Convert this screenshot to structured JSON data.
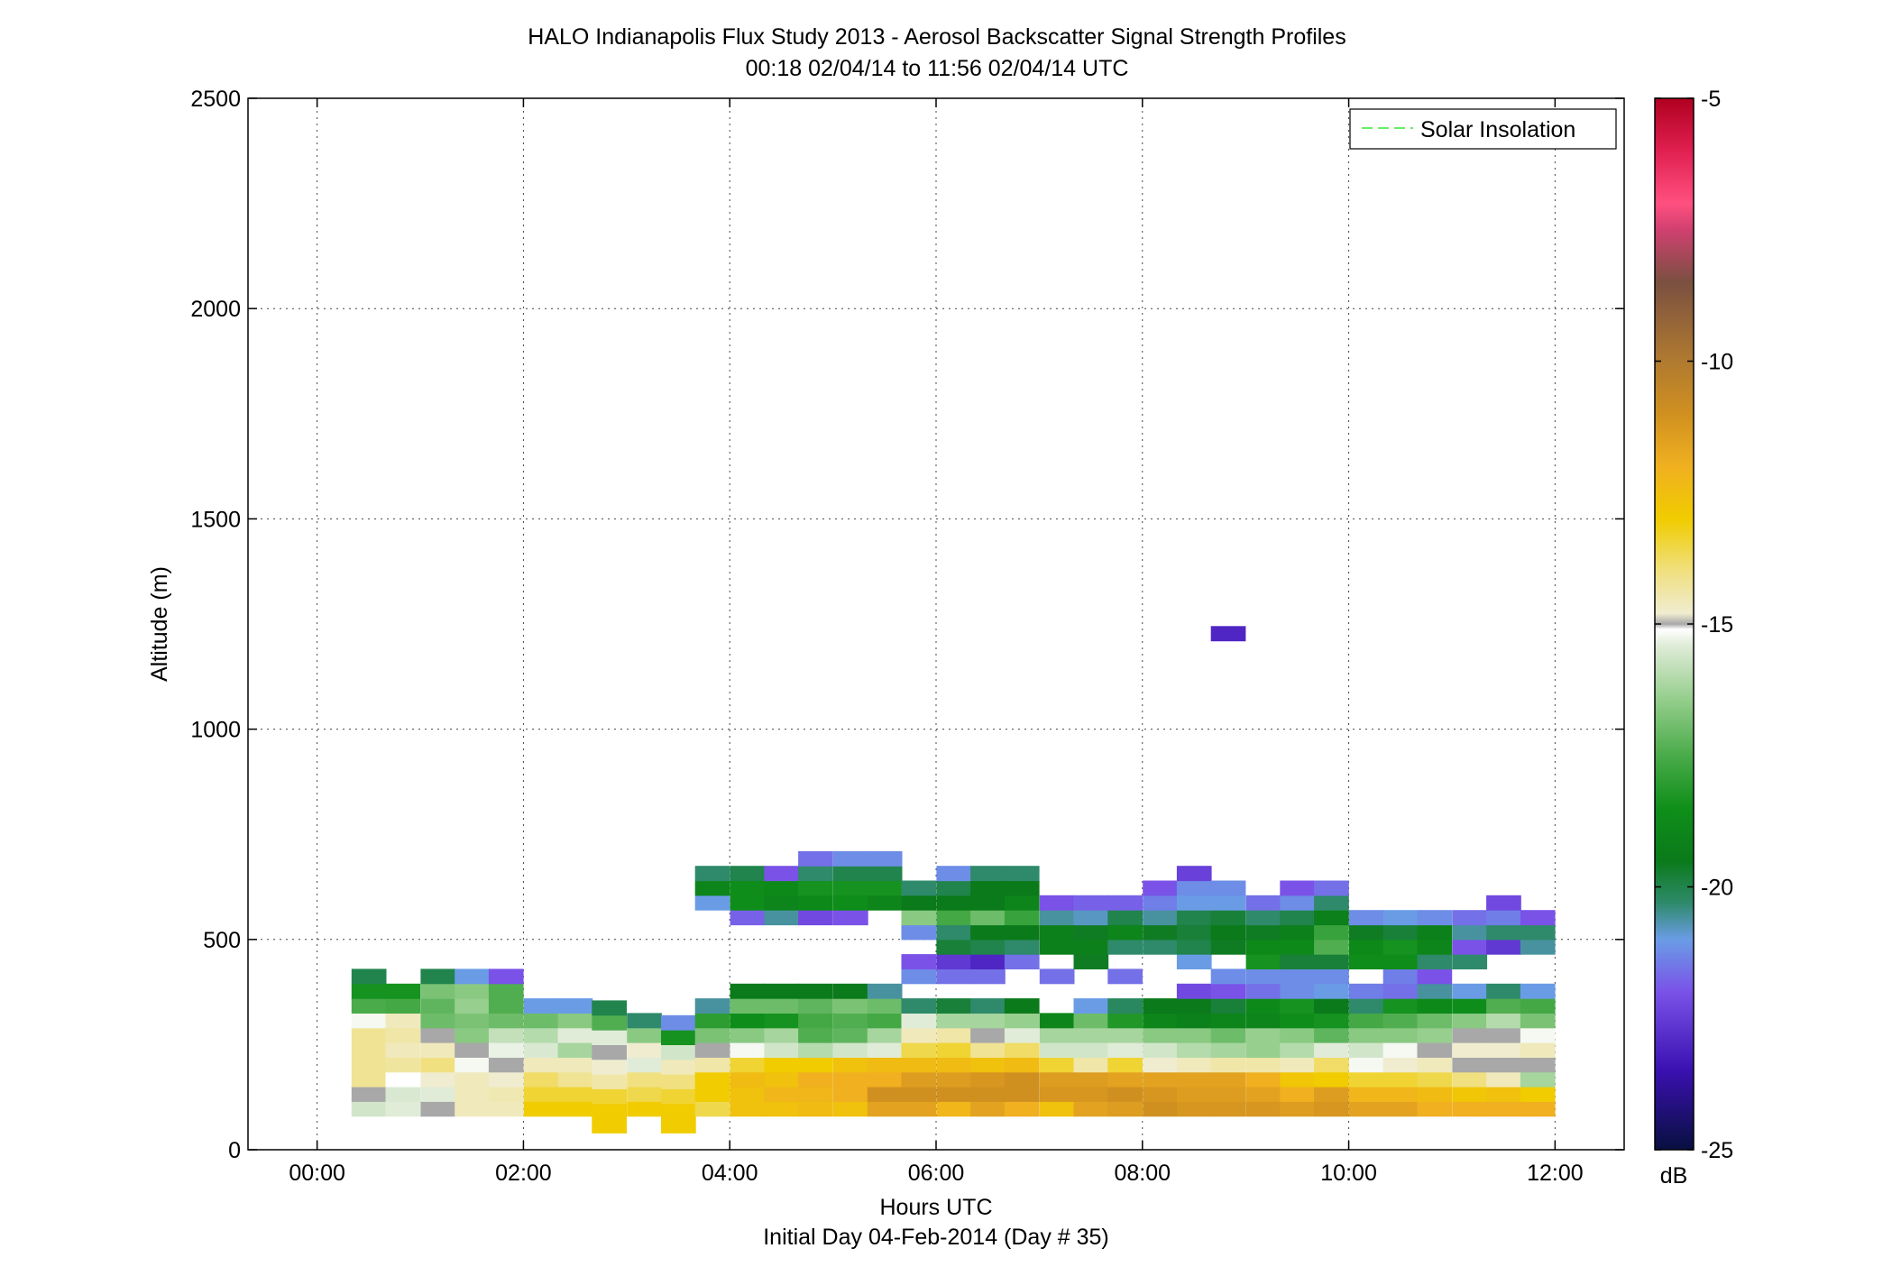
{
  "chart_data": {
    "type": "heatmap",
    "title": "HALO Indianapolis Flux Study 2013 - Aerosol Backscatter Signal Strength Profiles",
    "subtitle": "00:18 02/04/14 to 11:56 02/04/14  UTC",
    "xlabel": "Hours UTC",
    "xlabel2": "Initial Day 04-Feb-2014 (Day # 35)",
    "ylabel": "Altitude (m)",
    "xlim": [
      -0.67,
      12.67
    ],
    "ylim": [
      0,
      2500
    ],
    "x_ticks": [
      "00:00",
      "02:00",
      "04:00",
      "06:00",
      "08:00",
      "10:00",
      "12:00"
    ],
    "x_tick_values": [
      0,
      2,
      4,
      6,
      8,
      10,
      12
    ],
    "y_ticks": [
      0,
      500,
      1000,
      1500,
      2000,
      2500
    ],
    "grid": true,
    "legend": {
      "placement": "top-right",
      "entries": [
        {
          "name": "Solar Insolation",
          "style": "dashed",
          "color": "#66ee66"
        }
      ]
    },
    "colorbar": {
      "label": "dB",
      "range": [
        -25,
        -5
      ],
      "ticks": [
        -5,
        -10,
        -15,
        -20,
        -25
      ],
      "stops": [
        {
          "value": -25,
          "color": "#081040"
        },
        {
          "value": -23.5,
          "color": "#3a10b0"
        },
        {
          "value": -22,
          "color": "#7a52e8"
        },
        {
          "value": -21,
          "color": "#6a9ce6"
        },
        {
          "value": -20.3,
          "color": "#2e8a6a"
        },
        {
          "value": -19.5,
          "color": "#0a7a1a"
        },
        {
          "value": -18.5,
          "color": "#0f8f1a"
        },
        {
          "value": -17.5,
          "color": "#4aab4a"
        },
        {
          "value": -16.5,
          "color": "#90cc88"
        },
        {
          "value": -15.4,
          "color": "#e0ecd8"
        },
        {
          "value": -15.1,
          "color": "#ffffff"
        },
        {
          "value": -15.0,
          "color": "#a8a8a8"
        },
        {
          "value": -14.8,
          "color": "#f0ecd0"
        },
        {
          "value": -14,
          "color": "#f0e080"
        },
        {
          "value": -13,
          "color": "#f0cc00"
        },
        {
          "value": -12,
          "color": "#f0b020"
        },
        {
          "value": -11,
          "color": "#d09020"
        },
        {
          "value": -10,
          "color": "#b07a30"
        },
        {
          "value": -8.5,
          "color": "#7a5040"
        },
        {
          "value": -7.5,
          "color": "#d04070"
        },
        {
          "value": -7,
          "color": "#ff5080"
        },
        {
          "value": -6,
          "color": "#e02050"
        },
        {
          "value": -5,
          "color": "#b00020"
        }
      ]
    },
    "cell": {
      "dt_hours": 0.333,
      "dz_m": 35
    },
    "columns": [
      {
        "t": 0.5,
        "z0": 80,
        "values": [
          -15.6,
          -15.0,
          -14.2,
          -14.2,
          -14.2,
          -14.2,
          -15.2,
          -17.5,
          -18.4,
          -20.0
        ]
      },
      {
        "t": 0.83,
        "z0": 80,
        "values": [
          -15.4,
          -15.5,
          -15.1,
          -14.3,
          -14.6,
          -14.4,
          -14.6,
          -17.6,
          -18.4
        ]
      },
      {
        "t": 1.17,
        "z0": 80,
        "values": [
          -15.0,
          -15.4,
          -14.8,
          -14.0,
          -14.6,
          -15.0,
          -17.0,
          -17.2,
          -16.8,
          -20.0
        ]
      },
      {
        "t": 1.5,
        "z0": 80,
        "values": [
          -14.6,
          -14.6,
          -14.6,
          -15.2,
          -15.0,
          -16.6,
          -16.8,
          -16.4,
          -16.6,
          -21.0
        ]
      },
      {
        "t": 1.83,
        "z0": 80,
        "values": [
          -14.6,
          -14.5,
          -14.8,
          -15.0,
          -15.3,
          -15.8,
          -17.0,
          -17.4,
          -17.4,
          -22.0
        ]
      },
      {
        "t": 2.17,
        "z0": 80,
        "values": [
          -13.0,
          -13.4,
          -13.8,
          -14.6,
          -15.5,
          -16.0,
          -17.0,
          -21.0
        ]
      },
      {
        "t": 2.5,
        "z0": 80,
        "values": [
          -13.0,
          -13.4,
          -14.2,
          -14.6,
          -16.2,
          -15.4,
          -16.6,
          -21.0
        ]
      },
      {
        "t": 2.83,
        "z0": 40,
        "values": [
          -13.0,
          -13.0,
          -13.4,
          -14.4,
          -14.8,
          -15.0,
          -15.4,
          -17.4,
          -20.0
        ]
      },
      {
        "t": 3.17,
        "z0": 80,
        "values": [
          -13.0,
          -13.6,
          -14.0,
          -15.4,
          -14.8,
          -16.6,
          -20.3
        ]
      },
      {
        "t": 3.5,
        "z0": 40,
        "values": [
          -13.0,
          -13.0,
          -13.4,
          -14.0,
          -14.6,
          -15.6,
          -18.4,
          -21.2
        ]
      },
      {
        "t": 3.83,
        "z0": 80,
        "values": [
          -13.6,
          -13.0,
          -13.0,
          -14.4,
          -15.0,
          -16.8,
          -18.0,
          -20.6,
          null,
          null,
          null,
          null,
          null,
          null,
          -21.0,
          -19.0,
          -20.3
        ]
      },
      {
        "t": 4.17,
        "z0": 80,
        "values": [
          -12.6,
          -12.6,
          -12.4,
          -13.4,
          -15.2,
          -16.6,
          -18.6,
          -17.0,
          -19.5,
          null,
          null,
          null,
          null,
          -21.8,
          -18.6,
          -18.6,
          -20.0
        ]
      },
      {
        "t": 4.5,
        "z0": 80,
        "values": [
          -12.6,
          -12.2,
          -12.6,
          -13.0,
          -15.6,
          -16.2,
          -18.4,
          -17.0,
          -19.5,
          null,
          null,
          null,
          null,
          -20.6,
          -19.0,
          -18.8,
          -22.0
        ]
      },
      {
        "t": 4.83,
        "z0": 80,
        "values": [
          -12.4,
          -12.2,
          -12.0,
          -13.0,
          -16.0,
          -17.4,
          -17.6,
          -17.2,
          -19.5,
          null,
          null,
          null,
          null,
          -22.2,
          -18.8,
          -18.4,
          -20.3,
          -21.6
        ]
      },
      {
        "t": 5.17,
        "z0": 80,
        "values": [
          -12.6,
          -12.0,
          -12.0,
          -12.6,
          -15.6,
          -17.2,
          -17.4,
          -16.8,
          -19.5,
          null,
          null,
          null,
          null,
          -22.0,
          -18.6,
          -18.4,
          -20.0,
          -21.2
        ]
      },
      {
        "t": 5.5,
        "z0": 80,
        "values": [
          -11.6,
          -11.0,
          -12.0,
          -12.4,
          -15.4,
          -16.2,
          -17.6,
          -17.0,
          -20.6,
          null,
          null,
          null,
          null,
          null,
          -19.0,
          -18.4,
          -20.0,
          -21.2
        ]
      },
      {
        "t": 5.83,
        "z0": 80,
        "values": [
          -11.6,
          -11.0,
          -11.4,
          -12.4,
          -13.6,
          -14.6,
          -15.4,
          -20.3,
          null,
          -21.2,
          -22.0,
          null,
          -21.2,
          -16.6,
          -19.5,
          -20.3
        ]
      },
      {
        "t": 6.17,
        "z0": 80,
        "values": [
          -12.2,
          -11.0,
          -11.4,
          -12.4,
          -13.4,
          -14.4,
          -16.2,
          -19.8,
          null,
          -21.6,
          -22.6,
          -19.8,
          -20.3,
          -17.6,
          -19.5,
          -20.0,
          -21.2
        ]
      },
      {
        "t": 6.5,
        "z0": 80,
        "values": [
          -11.6,
          -11.0,
          -11.2,
          -12.6,
          -14.2,
          -15.0,
          -16.2,
          -20.3,
          null,
          -21.6,
          -23.0,
          -20.0,
          -19.5,
          -17.0,
          -19.5,
          -19.5,
          -20.3
        ]
      },
      {
        "t": 6.83,
        "z0": 80,
        "values": [
          -12.0,
          -11.0,
          -11.0,
          -12.4,
          -13.8,
          -15.4,
          -16.4,
          -19.5,
          null,
          null,
          -21.6,
          -20.3,
          -19.5,
          -17.8,
          -19.0,
          -19.5,
          -20.3
        ]
      },
      {
        "t": 7.17,
        "z0": 80,
        "values": [
          -12.6,
          -11.2,
          -11.4,
          -13.4,
          -15.6,
          -16.2,
          -19.0,
          null,
          null,
          -21.6,
          null,
          -19.2,
          -19.2,
          -20.6,
          -22.0
        ]
      },
      {
        "t": 7.5,
        "z0": 80,
        "values": [
          -11.6,
          -11.2,
          -11.4,
          -14.4,
          -15.6,
          -16.2,
          -17.0,
          -21.0,
          null,
          null,
          -19.6,
          -19.2,
          -19.6,
          -20.8,
          -21.8
        ]
      },
      {
        "t": 7.83,
        "z0": 80,
        "values": [
          -11.4,
          -11.0,
          -11.6,
          -13.4,
          -15.4,
          -16.2,
          -18.2,
          -20.2,
          null,
          -21.6,
          null,
          -20.3,
          -19.0,
          -20.0,
          -21.8
        ]
      },
      {
        "t": 8.17,
        "z0": 80,
        "values": [
          -11.0,
          -11.2,
          -11.6,
          -14.8,
          -15.6,
          -16.6,
          -19.0,
          -19.5,
          null,
          null,
          null,
          -20.3,
          -19.6,
          -20.6,
          -21.4,
          -22.0
        ]
      },
      {
        "t": 8.5,
        "z0": 80,
        "values": [
          -11.2,
          -11.4,
          -11.6,
          -14.6,
          -16.0,
          -16.6,
          -19.2,
          -19.5,
          -22.2,
          null,
          -21.0,
          -20.0,
          -19.8,
          -20.0,
          -21.0,
          -21.2,
          -22.4
        ]
      },
      {
        "t": 8.83,
        "z0": 80,
        "values": [
          -11.2,
          -11.4,
          -11.6,
          -14.4,
          -16.2,
          -17.0,
          -19.0,
          -19.8,
          -22.0,
          -21.2,
          null,
          -19.6,
          -19.5,
          -19.8,
          -21.0,
          -21.2
        ]
      },
      {
        "t": 9.17,
        "z0": 80,
        "values": [
          -11.2,
          -11.6,
          -12.0,
          -14.4,
          -16.4,
          -16.4,
          -19.0,
          -18.8,
          -21.6,
          -21.2,
          -18.4,
          -18.8,
          -19.6,
          -20.3,
          -21.6
        ]
      },
      {
        "t": 9.5,
        "z0": 80,
        "values": [
          -11.4,
          -12.0,
          -12.8,
          -14.6,
          -16.0,
          -16.6,
          -18.6,
          -18.4,
          -21.2,
          -21.2,
          -19.8,
          -18.8,
          -19.2,
          -20.0,
          -21.2,
          -22.0
        ]
      },
      {
        "t": 9.83,
        "z0": 80,
        "values": [
          -11.2,
          -11.4,
          -13.0,
          -13.8,
          -15.4,
          -17.2,
          -18.4,
          -19.5,
          -21.0,
          -21.2,
          -19.8,
          -17.4,
          -17.8,
          -19.2,
          -20.3,
          -21.6
        ]
      },
      {
        "t": 10.17,
        "z0": 80,
        "values": [
          -11.6,
          -12.2,
          -13.4,
          -15.2,
          -15.6,
          -16.6,
          -17.6,
          -20.3,
          -21.4,
          null,
          -18.6,
          -18.8,
          -19.6,
          -21.2
        ]
      },
      {
        "t": 10.5,
        "z0": 80,
        "values": [
          -11.6,
          -12.2,
          -13.4,
          -14.8,
          -15.2,
          -16.6,
          -17.4,
          -18.4,
          -21.6,
          -21.4,
          -18.6,
          -18.4,
          -19.8,
          -21.0
        ]
      },
      {
        "t": 10.83,
        "z0": 80,
        "values": [
          -12.0,
          -12.4,
          -13.6,
          -14.6,
          -15.0,
          -16.4,
          -17.0,
          -18.8,
          -20.6,
          -22.0,
          -20.3,
          -19.0,
          -19.2,
          -21.2
        ]
      },
      {
        "t": 11.17,
        "z0": 80,
        "values": [
          -12.0,
          -12.8,
          -14.0,
          -15.0,
          -14.8,
          -15.0,
          -16.6,
          -18.6,
          -21.0,
          null,
          -20.3,
          -22.0,
          -20.6,
          -21.6
        ]
      },
      {
        "t": 11.5,
        "z0": 80,
        "values": [
          -12.0,
          -12.6,
          -14.6,
          -15.0,
          -14.8,
          -15.0,
          -16.0,
          -17.4,
          -20.3,
          null,
          null,
          -22.6,
          -20.3,
          -21.4,
          -22.2
        ]
      },
      {
        "t": 11.83,
        "z0": 80,
        "values": [
          -12.0,
          -13.0,
          -16.2,
          -15.0,
          -14.6,
          -15.2,
          -16.8,
          -17.6,
          -21.0,
          null,
          null,
          -20.6,
          -20.3,
          -22.0
        ]
      }
    ],
    "isolated_cells": [
      {
        "t": 8.83,
        "z": 1210,
        "value": -23.0
      }
    ]
  }
}
